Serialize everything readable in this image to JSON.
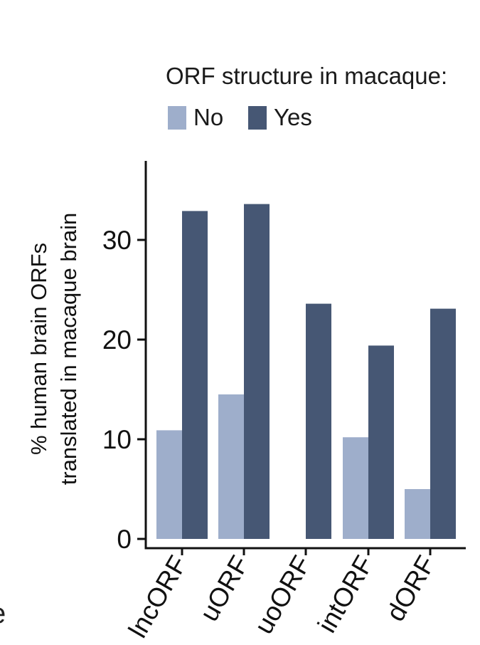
{
  "chart_data": {
    "type": "bar",
    "title": "",
    "xlabel": "",
    "ylabel_line1": "% human brain ORFs",
    "ylabel_line2": "translated in macaque brain",
    "categories": [
      "lncORF",
      "uORF",
      "uoORF",
      "intORF",
      "dORF"
    ],
    "series": [
      {
        "name": "No",
        "color": "#9eaecb",
        "values": [
          10.9,
          14.5,
          0,
          10.2,
          5.0
        ]
      },
      {
        "name": "Yes",
        "color": "#465774",
        "values": [
          32.9,
          33.6,
          23.6,
          19.4,
          23.1
        ]
      }
    ],
    "yticks": [
      0,
      10,
      20,
      30
    ],
    "ylim": [
      0,
      38
    ],
    "grid": false,
    "legend": {
      "title": "ORF structure in macaque:",
      "position": "top"
    }
  },
  "edge_text": "e"
}
